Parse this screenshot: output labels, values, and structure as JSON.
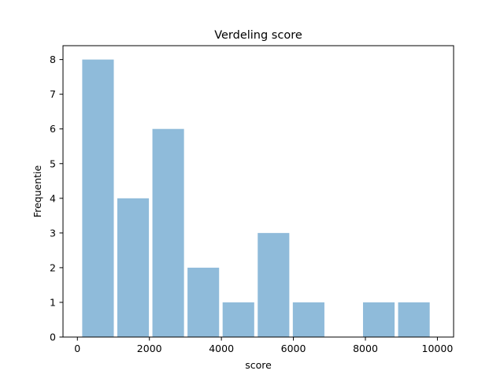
{
  "chart_data": {
    "type": "bar",
    "title": "Verdeling score",
    "xlabel": "score",
    "ylabel": "Frequentie",
    "xlim": [
      -400,
      10450
    ],
    "ylim": [
      0,
      8.4
    ],
    "x_ticks": [
      0,
      2000,
      4000,
      6000,
      8000,
      10000
    ],
    "x_tick_labels": [
      "0",
      "2000",
      "4000",
      "6000",
      "8000",
      "10000"
    ],
    "y_ticks": [
      0,
      1,
      2,
      3,
      4,
      5,
      6,
      7,
      8
    ],
    "y_tick_labels": [
      "0",
      "1",
      "2",
      "3",
      "4",
      "5",
      "6",
      "7",
      "8"
    ],
    "grid": false,
    "bar_color": "#8fbbda",
    "bins": [
      {
        "start": 85,
        "end": 1060,
        "value": 8
      },
      {
        "start": 1060,
        "end": 2035,
        "value": 4
      },
      {
        "start": 2035,
        "end": 3010,
        "value": 6
      },
      {
        "start": 3010,
        "end": 3985,
        "value": 2
      },
      {
        "start": 3985,
        "end": 4960,
        "value": 1
      },
      {
        "start": 4960,
        "end": 5935,
        "value": 3
      },
      {
        "start": 5935,
        "end": 6910,
        "value": 1
      },
      {
        "start": 6910,
        "end": 7885,
        "value": 0
      },
      {
        "start": 7885,
        "end": 8860,
        "value": 1
      },
      {
        "start": 8860,
        "end": 9835,
        "value": 1
      }
    ]
  }
}
